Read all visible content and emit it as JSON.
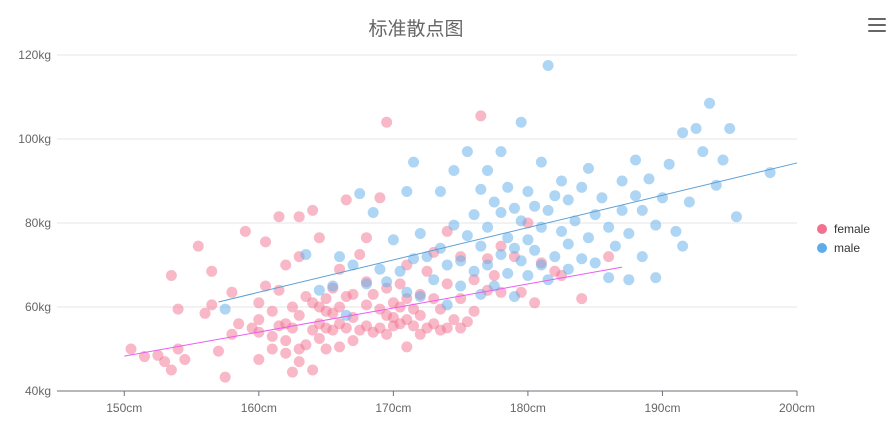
{
  "chart_data": {
    "type": "scatter",
    "title": "标准散点图",
    "x_ticks": [
      "150cm",
      "160cm",
      "170cm",
      "180cm",
      "190cm",
      "200cm"
    ],
    "y_ticks": [
      "40kg",
      "60kg",
      "80kg",
      "100kg",
      "120kg"
    ],
    "xlim": [
      145,
      200
    ],
    "ylim": [
      40,
      120
    ],
    "grid": true,
    "legend_position": "right",
    "series": [
      {
        "name": "female",
        "color": "#f2718f",
        "trendline": [
          [
            150,
            48.3
          ],
          [
            187,
            69.5
          ]
        ],
        "points": [
          [
            150.5,
            50.0
          ],
          [
            151.5,
            48.2
          ],
          [
            152.5,
            48.5
          ],
          [
            153.0,
            47.0
          ],
          [
            153.5,
            45.0
          ],
          [
            154.0,
            50.0
          ],
          [
            154.5,
            47.5
          ],
          [
            153.5,
            67.5
          ],
          [
            155.5,
            74.5
          ],
          [
            154.0,
            59.5
          ],
          [
            156.0,
            58.5
          ],
          [
            156.5,
            68.5
          ],
          [
            156.5,
            60.5
          ],
          [
            157.0,
            49.5
          ],
          [
            157.5,
            43.3
          ],
          [
            158.0,
            53.5
          ],
          [
            158.5,
            56.0
          ],
          [
            158.0,
            63.5
          ],
          [
            159.0,
            78.0
          ],
          [
            159.5,
            55.0
          ],
          [
            160.0,
            47.5
          ],
          [
            160.0,
            54.0
          ],
          [
            160.0,
            57.0
          ],
          [
            160.0,
            61.0
          ],
          [
            160.5,
            65.0
          ],
          [
            160.5,
            75.5
          ],
          [
            161.0,
            50.0
          ],
          [
            161.0,
            53.0
          ],
          [
            161.0,
            59.0
          ],
          [
            161.5,
            55.5
          ],
          [
            161.5,
            64.0
          ],
          [
            161.5,
            81.5
          ],
          [
            162.0,
            49.0
          ],
          [
            162.0,
            52.0
          ],
          [
            162.0,
            56.0
          ],
          [
            162.0,
            70.0
          ],
          [
            162.5,
            44.5
          ],
          [
            162.5,
            55.0
          ],
          [
            162.5,
            60.0
          ],
          [
            163.0,
            47.0
          ],
          [
            163.0,
            50.0
          ],
          [
            163.0,
            58.0
          ],
          [
            163.0,
            72.0
          ],
          [
            163.0,
            81.5
          ],
          [
            163.5,
            51.0
          ],
          [
            163.5,
            62.5
          ],
          [
            164.0,
            45.0
          ],
          [
            164.0,
            54.5
          ],
          [
            164.0,
            61.0
          ],
          [
            164.0,
            83.0
          ],
          [
            164.5,
            52.5
          ],
          [
            164.5,
            56.0
          ],
          [
            164.5,
            60.0
          ],
          [
            164.5,
            76.5
          ],
          [
            165.0,
            50.0
          ],
          [
            165.0,
            55.0
          ],
          [
            165.0,
            59.0
          ],
          [
            165.0,
            62.0
          ],
          [
            165.5,
            54.5
          ],
          [
            165.5,
            58.5
          ],
          [
            165.5,
            64.5
          ],
          [
            166.0,
            50.5
          ],
          [
            166.0,
            56.0
          ],
          [
            166.0,
            60.0
          ],
          [
            166.0,
            69.0
          ],
          [
            166.5,
            55.0
          ],
          [
            166.5,
            62.5
          ],
          [
            166.5,
            85.5
          ],
          [
            167.0,
            52.0
          ],
          [
            167.0,
            57.5
          ],
          [
            167.0,
            63.0
          ],
          [
            167.5,
            54.5
          ],
          [
            167.5,
            72.5
          ],
          [
            168.0,
            55.5
          ],
          [
            168.0,
            60.5
          ],
          [
            168.0,
            66.0
          ],
          [
            168.0,
            76.5
          ],
          [
            168.5,
            54.0
          ],
          [
            168.5,
            63.0
          ],
          [
            169.0,
            55.0
          ],
          [
            169.0,
            59.5
          ],
          [
            169.0,
            86.0
          ],
          [
            169.5,
            53.5
          ],
          [
            169.5,
            58.0
          ],
          [
            169.5,
            64.5
          ],
          [
            169.5,
            104.0
          ],
          [
            170.0,
            55.5
          ],
          [
            170.0,
            57.5
          ],
          [
            170.0,
            61.0
          ],
          [
            170.5,
            56.0
          ],
          [
            170.5,
            60.0
          ],
          [
            170.5,
            65.5
          ],
          [
            171.0,
            50.5
          ],
          [
            171.0,
            57.0
          ],
          [
            171.0,
            62.0
          ],
          [
            171.0,
            70.0
          ],
          [
            171.5,
            55.5
          ],
          [
            171.5,
            59.5
          ],
          [
            172.0,
            53.5
          ],
          [
            172.0,
            58.0
          ],
          [
            172.0,
            63.0
          ],
          [
            172.5,
            55.0
          ],
          [
            172.5,
            68.5
          ],
          [
            173.0,
            56.0
          ],
          [
            173.0,
            62.0
          ],
          [
            173.0,
            73.0
          ],
          [
            173.5,
            54.5
          ],
          [
            173.5,
            59.5
          ],
          [
            174.0,
            55.0
          ],
          [
            174.0,
            65.5
          ],
          [
            174.0,
            78.0
          ],
          [
            174.5,
            57.0
          ],
          [
            175.0,
            55.0
          ],
          [
            175.0,
            62.0
          ],
          [
            175.0,
            72.0
          ],
          [
            175.5,
            56.5
          ],
          [
            176.0,
            59.0
          ],
          [
            176.0,
            66.5
          ],
          [
            176.5,
            105.5
          ],
          [
            177.0,
            64.0
          ],
          [
            177.0,
            71.5
          ],
          [
            177.5,
            67.5
          ],
          [
            178.0,
            63.5
          ],
          [
            178.0,
            74.5
          ],
          [
            179.0,
            72.0
          ],
          [
            179.5,
            63.5
          ],
          [
            180.0,
            80.0
          ],
          [
            180.5,
            61.0
          ],
          [
            181.0,
            70.5
          ],
          [
            182.0,
            68.5
          ],
          [
            182.5,
            67.5
          ],
          [
            184.0,
            62.0
          ],
          [
            186.0,
            72.0
          ]
        ]
      },
      {
        "name": "male",
        "color": "#5dade9",
        "trendline": [
          [
            157,
            61.2
          ],
          [
            200,
            94.3
          ]
        ],
        "points": [
          [
            157.5,
            59.5
          ],
          [
            163.5,
            72.5
          ],
          [
            164.5,
            64.0
          ],
          [
            165.5,
            65.0
          ],
          [
            166.0,
            72.0
          ],
          [
            166.5,
            58.0
          ],
          [
            167.0,
            70.0
          ],
          [
            167.5,
            87.0
          ],
          [
            168.0,
            65.5
          ],
          [
            168.5,
            82.5
          ],
          [
            169.0,
            69.0
          ],
          [
            169.5,
            66.0
          ],
          [
            170.0,
            76.0
          ],
          [
            170.5,
            68.5
          ],
          [
            171.0,
            87.5
          ],
          [
            171.5,
            94.5
          ],
          [
            171.0,
            63.5
          ],
          [
            171.5,
            71.5
          ],
          [
            172.0,
            77.5
          ],
          [
            172.0,
            62.5
          ],
          [
            172.5,
            72.0
          ],
          [
            173.0,
            66.5
          ],
          [
            173.5,
            74.0
          ],
          [
            173.5,
            87.5
          ],
          [
            174.0,
            60.5
          ],
          [
            174.0,
            70.0
          ],
          [
            174.5,
            79.5
          ],
          [
            174.5,
            92.5
          ],
          [
            175.0,
            65.0
          ],
          [
            175.0,
            71.0
          ],
          [
            175.5,
            77.0
          ],
          [
            175.5,
            97.0
          ],
          [
            176.0,
            68.5
          ],
          [
            176.0,
            82.0
          ],
          [
            176.5,
            63.0
          ],
          [
            176.5,
            74.5
          ],
          [
            176.5,
            88.0
          ],
          [
            177.0,
            70.0
          ],
          [
            177.0,
            79.0
          ],
          [
            177.0,
            92.5
          ],
          [
            177.5,
            65.0
          ],
          [
            177.5,
            85.0
          ],
          [
            178.0,
            72.5
          ],
          [
            178.0,
            82.5
          ],
          [
            178.0,
            97.0
          ],
          [
            178.5,
            68.0
          ],
          [
            178.5,
            76.5
          ],
          [
            178.5,
            88.5
          ],
          [
            179.0,
            62.5
          ],
          [
            179.0,
            74.0
          ],
          [
            179.0,
            83.5
          ],
          [
            179.5,
            71.0
          ],
          [
            179.5,
            80.5
          ],
          [
            179.5,
            104.0
          ],
          [
            180.0,
            67.5
          ],
          [
            180.0,
            76.0
          ],
          [
            180.0,
            87.5
          ],
          [
            180.5,
            73.5
          ],
          [
            180.5,
            84.0
          ],
          [
            181.0,
            70.0
          ],
          [
            181.0,
            79.0
          ],
          [
            181.0,
            94.5
          ],
          [
            181.5,
            66.5
          ],
          [
            181.5,
            83.0
          ],
          [
            181.5,
            117.5
          ],
          [
            182.0,
            72.0
          ],
          [
            182.0,
            86.5
          ],
          [
            182.5,
            78.0
          ],
          [
            182.5,
            90.0
          ],
          [
            183.0,
            69.0
          ],
          [
            183.0,
            75.0
          ],
          [
            183.0,
            85.5
          ],
          [
            183.5,
            80.5
          ],
          [
            184.0,
            71.5
          ],
          [
            184.0,
            88.5
          ],
          [
            184.5,
            76.5
          ],
          [
            184.5,
            93.0
          ],
          [
            185.0,
            70.5
          ],
          [
            185.0,
            82.0
          ],
          [
            185.5,
            86.0
          ],
          [
            186.0,
            67.0
          ],
          [
            186.0,
            79.0
          ],
          [
            186.5,
            74.5
          ],
          [
            187.0,
            83.0
          ],
          [
            187.0,
            90.0
          ],
          [
            187.5,
            66.5
          ],
          [
            187.5,
            77.5
          ],
          [
            188.0,
            86.5
          ],
          [
            188.0,
            95.0
          ],
          [
            188.5,
            72.0
          ],
          [
            188.5,
            83.0
          ],
          [
            189.0,
            90.5
          ],
          [
            189.5,
            67.0
          ],
          [
            189.5,
            79.5
          ],
          [
            190.0,
            86.0
          ],
          [
            190.5,
            94.0
          ],
          [
            191.0,
            78.0
          ],
          [
            191.5,
            101.5
          ],
          [
            191.5,
            74.5
          ],
          [
            192.0,
            85.0
          ],
          [
            192.5,
            102.5
          ],
          [
            193.0,
            97.0
          ],
          [
            193.5,
            108.5
          ],
          [
            194.0,
            89.0
          ],
          [
            194.5,
            95.0
          ],
          [
            195.0,
            102.5
          ],
          [
            195.5,
            81.5
          ],
          [
            198.0,
            92.0
          ]
        ]
      }
    ]
  },
  "toolbox": {
    "icon": "menu-icon"
  }
}
